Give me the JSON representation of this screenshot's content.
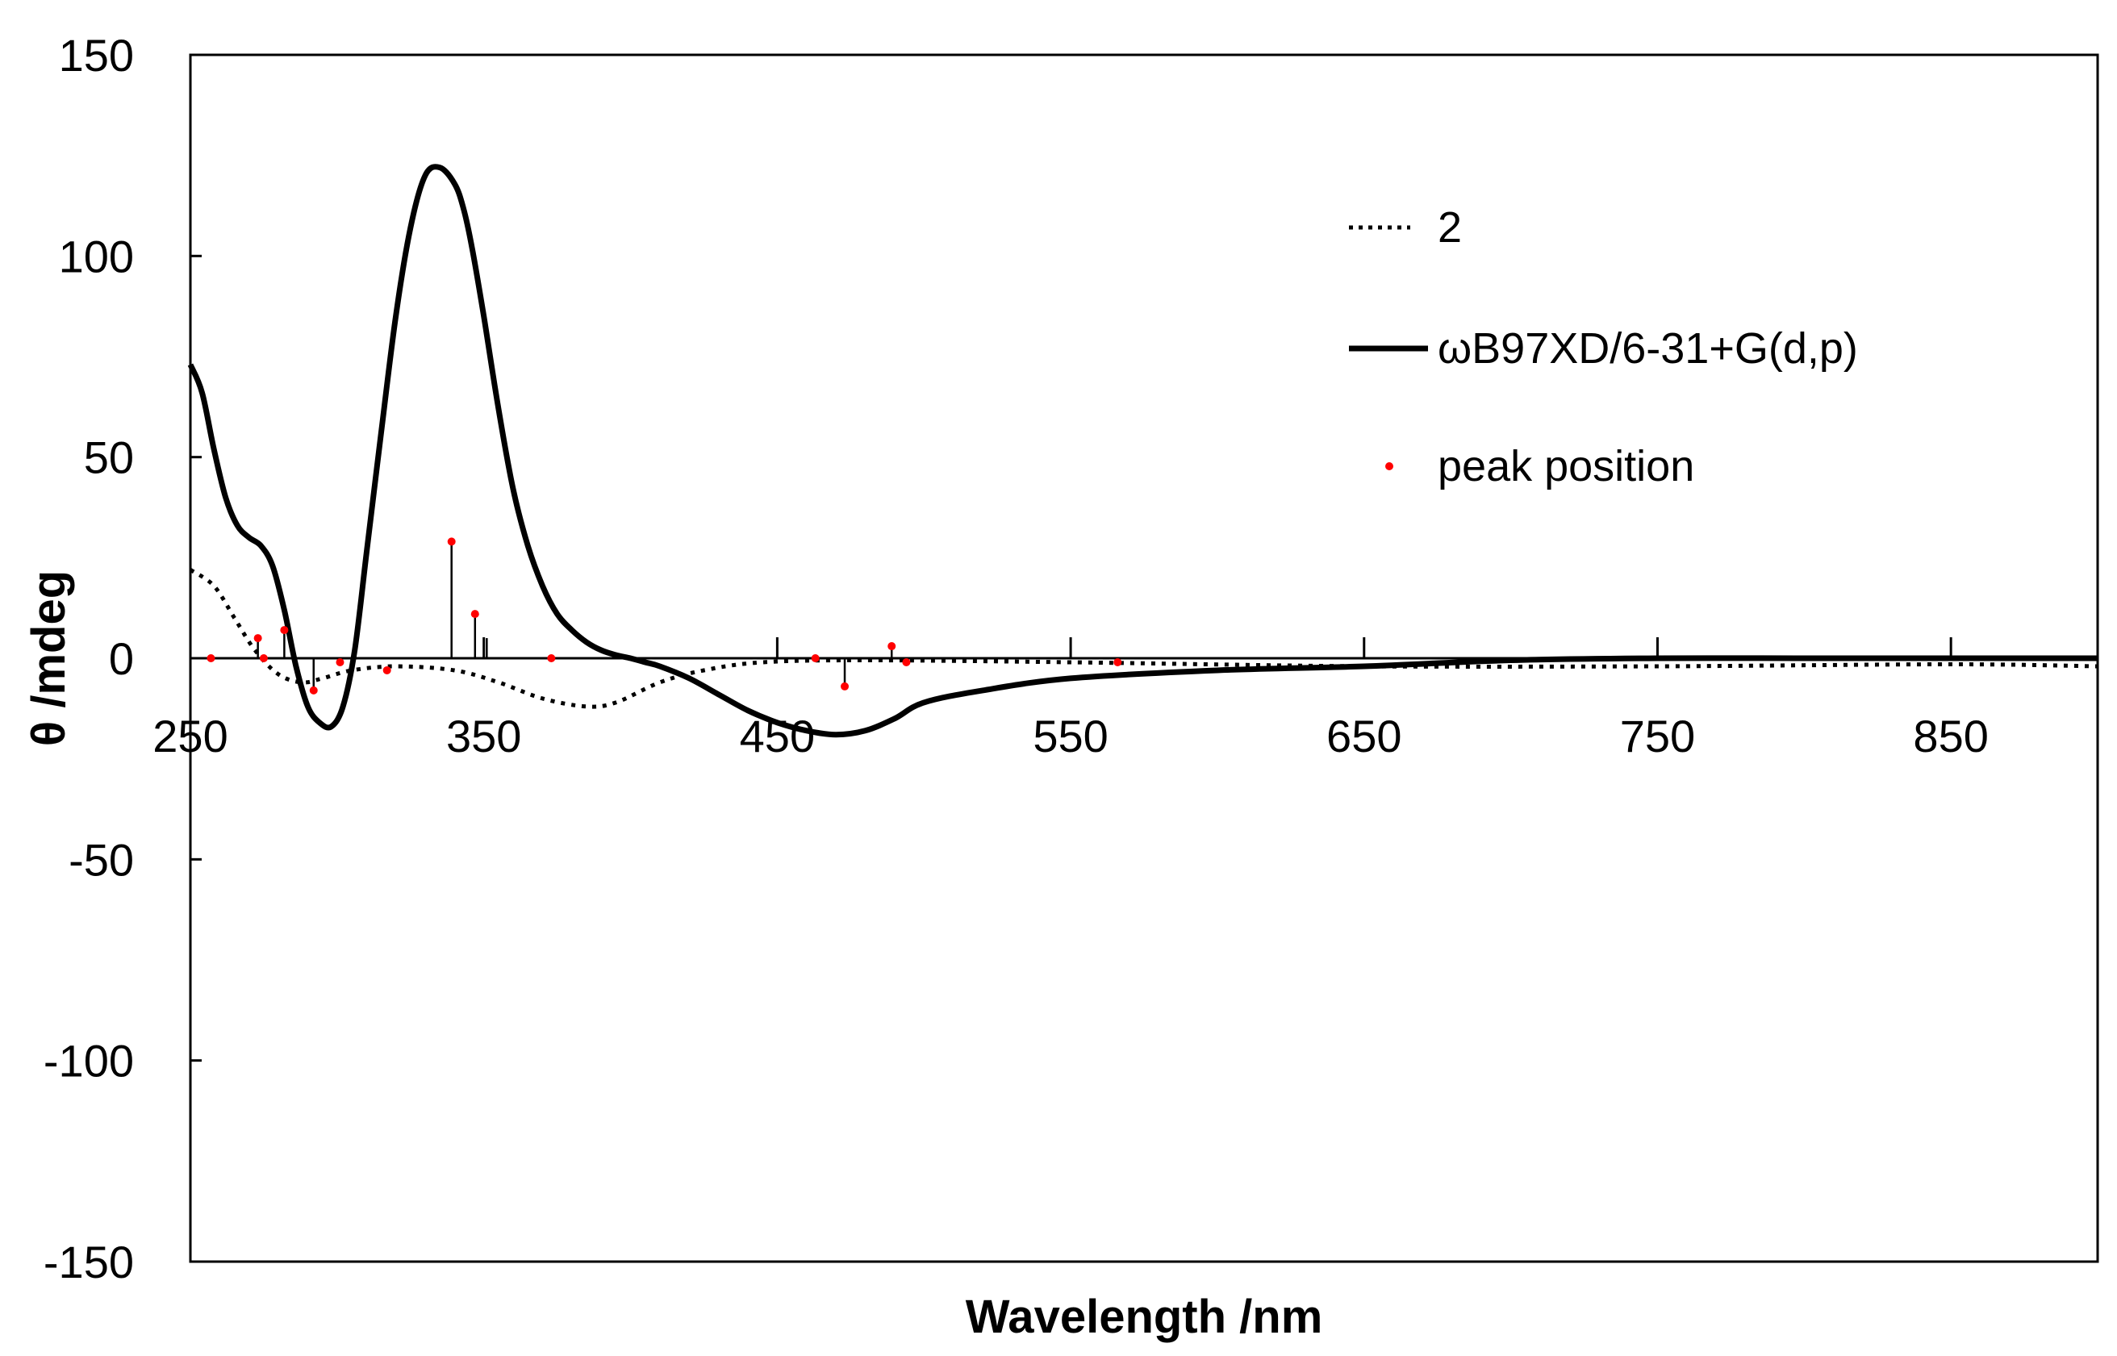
{
  "chart_data": {
    "type": "line",
    "title": "",
    "xlabel": "Wavelength /nm",
    "ylabel": "θ /mdeg",
    "xlim": [
      250,
      900
    ],
    "ylim": [
      -150,
      150
    ],
    "x_ticks": [
      250,
      350,
      450,
      550,
      650,
      750,
      850
    ],
    "y_ticks": [
      150,
      100,
      50,
      0,
      -50,
      -100,
      -150
    ],
    "grid": false,
    "legend_position": "top-right",
    "series": [
      {
        "name": "2",
        "style": "dotted",
        "color": "#000000",
        "x": [
          250,
          258,
          265,
          272,
          280,
          288,
          295,
          305,
          320,
          340,
          355,
          370,
          385,
          395,
          410,
          425,
          445,
          480,
          550,
          650,
          750,
          850,
          900
        ],
        "y": [
          22,
          18,
          10,
          2,
          -4,
          -6,
          -5,
          -3,
          -2,
          -3,
          -6,
          -10,
          -12,
          -11,
          -6,
          -3,
          -1,
          -0.5,
          -1,
          -2,
          -2,
          -1.5,
          -2
        ]
      },
      {
        "name": "ωB97XD/6-31+G(d,p)",
        "style": "solid",
        "color": "#000000",
        "x": [
          250,
          254,
          258,
          262,
          266,
          270,
          274,
          278,
          282,
          286,
          290,
          294,
          298,
          302,
          306,
          310,
          315,
          320,
          325,
          330,
          335,
          340,
          343,
          346,
          350,
          355,
          360,
          365,
          370,
          375,
          380,
          385,
          390,
          395,
          400,
          405,
          410,
          420,
          430,
          440,
          450,
          460,
          470,
          480,
          490,
          500,
          520,
          550,
          600,
          650,
          700,
          750,
          800,
          850,
          900
        ],
        "y": [
          73,
          66,
          52,
          40,
          33,
          30,
          28,
          23,
          12,
          -2,
          -12,
          -16,
          -17,
          -12,
          2,
          26,
          56,
          85,
          107,
          120,
          122,
          118,
          112,
          102,
          85,
          62,
          42,
          28,
          18,
          11,
          7,
          4,
          2,
          0.8,
          0,
          -1,
          -2,
          -5,
          -9,
          -13,
          -16,
          -18,
          -19,
          -18,
          -15,
          -11,
          -8,
          -5,
          -3,
          -2,
          -0.5,
          0,
          0,
          0,
          0
        ]
      }
    ],
    "peak_positions": {
      "name": "peak position",
      "color": "#ff0000",
      "points": [
        {
          "x": 257,
          "y": 0
        },
        {
          "x": 273,
          "y": 5
        },
        {
          "x": 275,
          "y": 0
        },
        {
          "x": 282,
          "y": 7
        },
        {
          "x": 292,
          "y": -8
        },
        {
          "x": 301,
          "y": -1
        },
        {
          "x": 317,
          "y": -3
        },
        {
          "x": 339,
          "y": 29
        },
        {
          "x": 347,
          "y": 11
        },
        {
          "x": 373,
          "y": 0
        },
        {
          "x": 463,
          "y": 0
        },
        {
          "x": 473,
          "y": -7
        },
        {
          "x": 489,
          "y": 3
        },
        {
          "x": 494,
          "y": -1
        },
        {
          "x": 566,
          "y": -1
        }
      ],
      "sticks": [
        {
          "x": 273,
          "y": 5
        },
        {
          "x": 282,
          "y": 7
        },
        {
          "x": 292,
          "y": -8
        },
        {
          "x": 339,
          "y": 29
        },
        {
          "x": 347,
          "y": 11
        },
        {
          "x": 351,
          "y": 5
        },
        {
          "x": 473,
          "y": -7
        },
        {
          "x": 489,
          "y": 3
        }
      ]
    }
  }
}
